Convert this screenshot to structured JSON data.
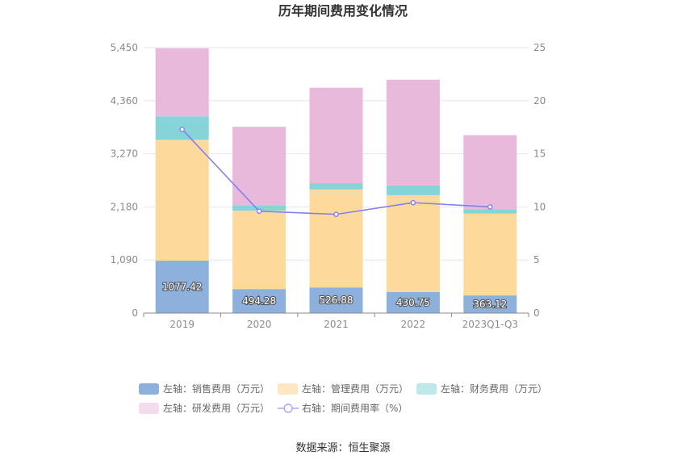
{
  "chart_data": {
    "type": "bar",
    "stacked": true,
    "title": "历年期间费用变化情况",
    "categories": [
      "2019",
      "2020",
      "2021",
      "2022",
      "2023Q1-Q3"
    ],
    "left_axis": {
      "ylim": [
        0,
        5450
      ],
      "ticks": [
        "0",
        "1,090",
        "2,180",
        "3,270",
        "4,360",
        "5,450"
      ],
      "tick_values": [
        0,
        1090,
        2180,
        3270,
        4360,
        5450
      ]
    },
    "right_axis": {
      "ylim": [
        0,
        25
      ],
      "ticks": [
        "0",
        "5",
        "10",
        "15",
        "20",
        "25"
      ],
      "tick_values": [
        0,
        5,
        10,
        15,
        20,
        25
      ]
    },
    "series": [
      {
        "name": "左轴：销售费用（万元）",
        "axis": "left",
        "color": "#8eb0dc",
        "legend_color": "#8eb0dc",
        "values": [
          1077.42,
          494.28,
          526.88,
          430.75,
          363.12
        ],
        "labels": [
          "1077.42",
          "494.28",
          "526.88",
          "430.75",
          "363.12"
        ]
      },
      {
        "name": "左轴：管理费用（万元）",
        "axis": "left",
        "color": "#fed99c",
        "legend_color": "#fde6c2",
        "values": [
          2480,
          1610,
          2010,
          1990,
          1680
        ]
      },
      {
        "name": "左轴：财务费用（万元）",
        "axis": "left",
        "color": "#86d4d8",
        "legend_color": "#bfe8ea",
        "values": [
          480,
          110,
          130,
          200,
          90
        ]
      },
      {
        "name": "左轴：研发费用（万元）",
        "axis": "left",
        "color": "#e8b9da",
        "legend_color": "#f3dcec",
        "values": [
          1400,
          1610,
          1960,
          2170,
          1520
        ]
      },
      {
        "name": "右轴：期间费用率（%）",
        "axis": "right",
        "type": "line",
        "color": "#8080f0",
        "values": [
          17.3,
          9.6,
          9.3,
          10.4,
          10.0
        ]
      }
    ],
    "grid": true,
    "legend_position": "bottom"
  },
  "source_text": "数据来源：恒生聚源"
}
